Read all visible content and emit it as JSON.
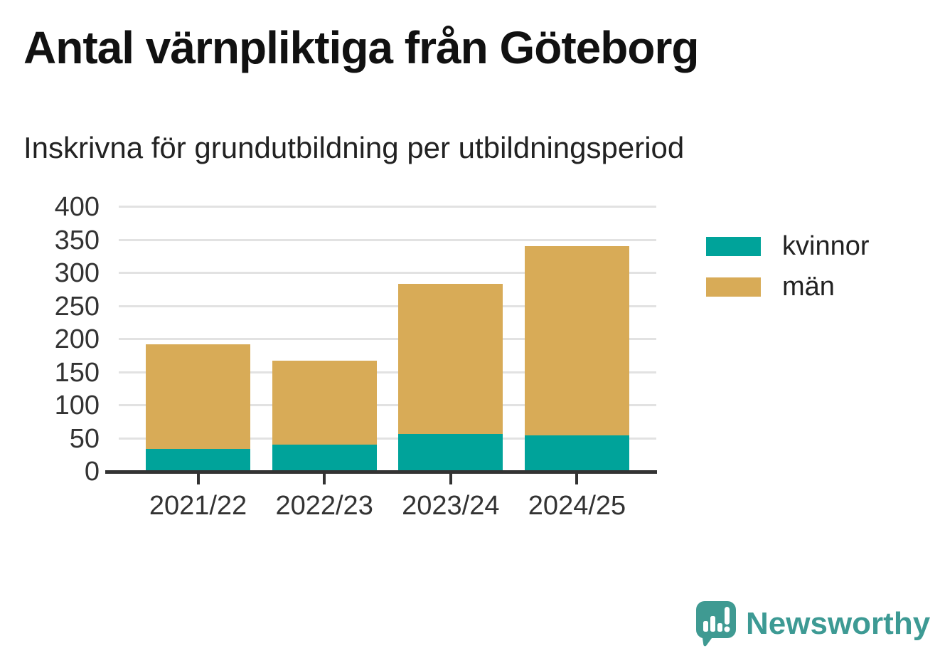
{
  "header": {
    "title": "Antal värnpliktiga från Göteborg",
    "subtitle": "Inskrivna för grundutbildning per utbildningsperiod"
  },
  "chart_data": {
    "type": "bar",
    "stacked": true,
    "title": "Antal värnpliktiga från Göteborg",
    "subtitle": "Inskrivna för grundutbildning per utbildningsperiod",
    "categories": [
      "2021/22",
      "2022/23",
      "2023/24",
      "2024/25"
    ],
    "series": [
      {
        "name": "kvinnor",
        "color": "#00a39a",
        "values": [
          34,
          41,
          57,
          55
        ]
      },
      {
        "name": "män",
        "color": "#d8ab57",
        "values": [
          158,
          127,
          227,
          286
        ]
      }
    ],
    "stack_totals": [
      192,
      168,
      284,
      341
    ],
    "xlabel": "",
    "ylabel": "",
    "ylim": [
      0,
      400
    ],
    "yticks": [
      0,
      50,
      100,
      150,
      200,
      250,
      300,
      350,
      400
    ],
    "grid": "horizontal",
    "legend_position": "right",
    "colors": {
      "axis_line": "#333333",
      "grid_line": "#e2e2e2",
      "tick_text": "#333333"
    }
  },
  "branding": {
    "logo_text": "Newsworthy",
    "logo_color": "#3d9a94",
    "logo_icon": "speech-bubble-bar-chart-icon"
  }
}
